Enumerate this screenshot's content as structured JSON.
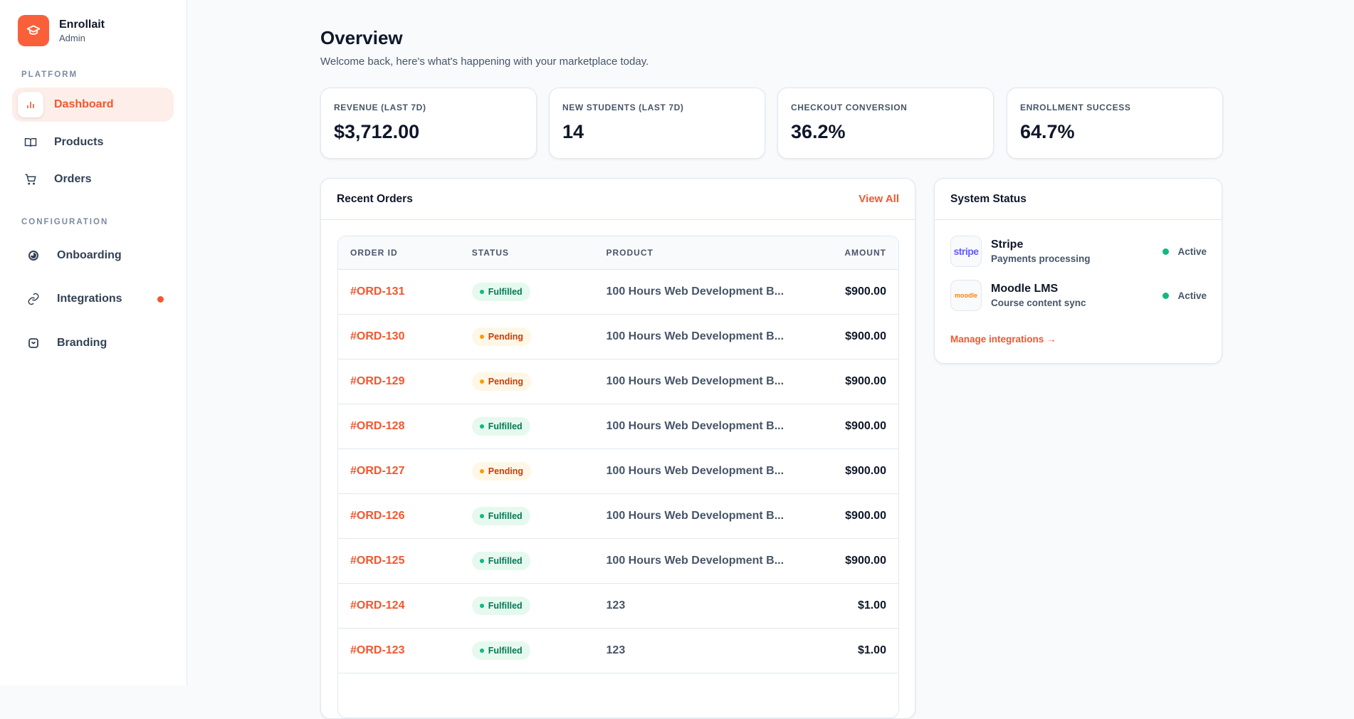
{
  "brand": {
    "name": "Enrollait",
    "role": "Admin",
    "accent": "#f9603a"
  },
  "sidebar": {
    "platform_label": "PLATFORM",
    "configuration_label": "CONFIGURATION",
    "items": [
      {
        "label": "Dashboard",
        "icon": "bar-chart-icon",
        "active": true
      },
      {
        "label": "Products",
        "icon": "book-icon"
      },
      {
        "label": "Orders",
        "icon": "cart-icon"
      },
      {
        "label": "Onboarding",
        "icon": "progress-circle-icon"
      },
      {
        "label": "Integrations",
        "icon": "link-icon",
        "notification": true
      },
      {
        "label": "Branding",
        "icon": "palette-icon"
      }
    ]
  },
  "header": {
    "title": "Overview",
    "subtitle": "Welcome back, here's what's happening with your marketplace today."
  },
  "stats": [
    {
      "label": "REVENUE (LAST 7D)",
      "value": "$3,712.00"
    },
    {
      "label": "NEW STUDENTS (LAST 7D)",
      "value": "14"
    },
    {
      "label": "CHECKOUT CONVERSION",
      "value": "36.2%"
    },
    {
      "label": "ENROLLMENT SUCCESS",
      "value": "64.7%"
    }
  ],
  "orders": {
    "title": "Recent Orders",
    "view_all": "View All",
    "columns": [
      "ORDER ID",
      "STATUS",
      "PRODUCT",
      "AMOUNT"
    ],
    "rows": [
      {
        "id": "#ORD-131",
        "status": "Fulfilled",
        "product": "100 Hours Web Development B...",
        "amount": "$900.00"
      },
      {
        "id": "#ORD-130",
        "status": "Pending",
        "product": "100 Hours Web Development B...",
        "amount": "$900.00"
      },
      {
        "id": "#ORD-129",
        "status": "Pending",
        "product": "100 Hours Web Development B...",
        "amount": "$900.00"
      },
      {
        "id": "#ORD-128",
        "status": "Fulfilled",
        "product": "100 Hours Web Development B...",
        "amount": "$900.00"
      },
      {
        "id": "#ORD-127",
        "status": "Pending",
        "product": "100 Hours Web Development B...",
        "amount": "$900.00"
      },
      {
        "id": "#ORD-126",
        "status": "Fulfilled",
        "product": "100 Hours Web Development B...",
        "amount": "$900.00"
      },
      {
        "id": "#ORD-125",
        "status": "Fulfilled",
        "product": "100 Hours Web Development B...",
        "amount": "$900.00"
      },
      {
        "id": "#ORD-124",
        "status": "Fulfilled",
        "product": "123",
        "amount": "$1.00"
      },
      {
        "id": "#ORD-123",
        "status": "Fulfilled",
        "product": "123",
        "amount": "$1.00"
      }
    ]
  },
  "system_status": {
    "title": "System Status",
    "integrations": [
      {
        "name": "Stripe",
        "desc": "Payments processing",
        "status": "Active",
        "logo": "stripe",
        "logo_color": "#635bff"
      },
      {
        "name": "Moodle LMS",
        "desc": "Course content sync",
        "status": "Active",
        "logo": "moodle",
        "logo_color": "#f98012"
      }
    ],
    "manage_link": "Manage integrations →"
  }
}
